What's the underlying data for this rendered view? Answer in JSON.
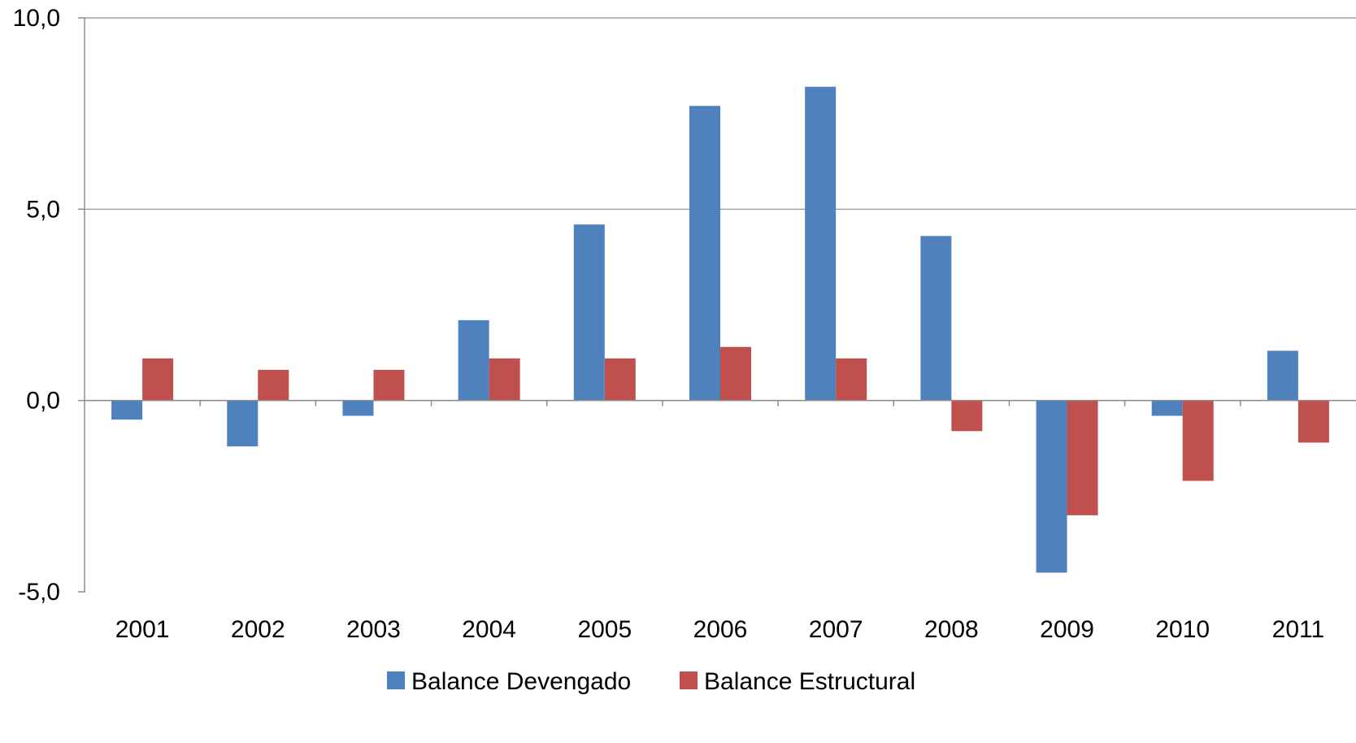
{
  "chart_data": {
    "type": "bar",
    "categories": [
      "2001",
      "2002",
      "2003",
      "2004",
      "2005",
      "2006",
      "2007",
      "2008",
      "2009",
      "2010",
      "2011"
    ],
    "series": [
      {
        "name": "Balance Devengado",
        "color": "#4F81BD",
        "values": [
          -0.5,
          -1.2,
          -0.4,
          2.1,
          4.6,
          7.7,
          8.2,
          4.3,
          -4.5,
          -0.4,
          1.3
        ]
      },
      {
        "name": "Balance Estructural",
        "color": "#C0504D",
        "values": [
          1.1,
          0.8,
          0.8,
          1.1,
          1.1,
          1.4,
          1.1,
          -0.8,
          -3.0,
          -2.1,
          -1.1
        ]
      }
    ],
    "ylim": [
      -5,
      10
    ],
    "yticks": [
      -5,
      0,
      5,
      10
    ],
    "ytick_labels": [
      "-5,0",
      "0,0",
      "5,0",
      "10,0"
    ],
    "grid": true,
    "legend_position": "bottom"
  }
}
